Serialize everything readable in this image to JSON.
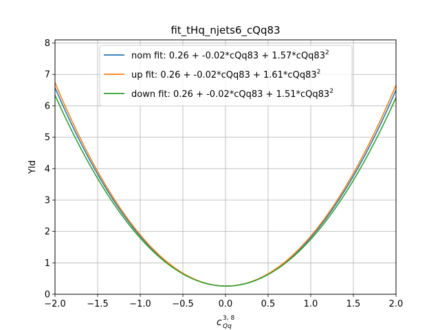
{
  "chart_data": {
    "type": "line",
    "title": "fit_tHq_njets6_cQq83",
    "ylabel": "Yld",
    "xlabel": {
      "base": "c",
      "sub": "Qq",
      "sup": "3, 8"
    },
    "xlim": [
      -2.0,
      2.0
    ],
    "ylim": [
      0,
      8.1
    ],
    "grid": true,
    "legend_position": "top-center",
    "x_ticks": [
      -2.0,
      -1.5,
      -1.0,
      -0.5,
      0.0,
      0.5,
      1.0,
      1.5,
      2.0
    ],
    "x_tick_labels": [
      "−2.0",
      "−1.5",
      "−1.0",
      "−0.5",
      "0.0",
      "0.5",
      "1.0",
      "1.5",
      "2.0"
    ],
    "y_ticks": [
      0,
      1,
      2,
      3,
      4,
      5,
      6,
      7,
      8
    ],
    "y_tick_labels": [
      "0",
      "1",
      "2",
      "3",
      "4",
      "5",
      "6",
      "7",
      "8"
    ],
    "series": [
      {
        "name": "nom fit: 0.26 + -0.02*cQq83 + 1.57*cQq83",
        "name_sup": "2",
        "color": "#1f77b4",
        "coeffs": [
          0.26,
          -0.02,
          1.57
        ]
      },
      {
        "name": "up fit: 0.26 + -0.02*cQq83 + 1.61*cQq83",
        "name_sup": "2",
        "color": "#ff7f0e",
        "coeffs": [
          0.26,
          -0.02,
          1.61
        ]
      },
      {
        "name": "down fit: 0.26 + -0.02*cQq83 + 1.51*cQq83",
        "name_sup": "2",
        "color": "#2ca02c",
        "coeffs": [
          0.26,
          -0.02,
          1.51
        ]
      }
    ]
  }
}
